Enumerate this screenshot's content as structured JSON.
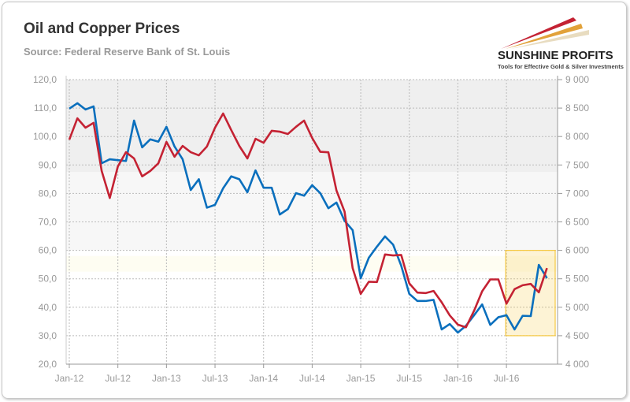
{
  "header": {
    "title": "Oil and Copper Prices",
    "subtitle": "Source: Federal Reserve Bank of St. Louis"
  },
  "logo": {
    "name": "SUNSHINE PROFITS",
    "tagline": "Tools for Effective Gold & Silver Investments"
  },
  "chart_data": {
    "type": "line",
    "title": "Oil and Copper Prices",
    "x_tick_labels": [
      "Jan-12",
      "Jul-12",
      "Jan-13",
      "Jul-13",
      "Jan-14",
      "Jul-14",
      "Jan-15",
      "Jul-15",
      "Jan-16",
      "Jul-16"
    ],
    "x_range": [
      "Jan-12",
      "Dec-16"
    ],
    "frequency": "monthly",
    "y_left": {
      "range": [
        20,
        120
      ],
      "ticks": [
        "20,0",
        "30,0",
        "40,0",
        "50,0",
        "60,0",
        "70,0",
        "80,0",
        "90,0",
        "100,0",
        "110,0",
        "120,0"
      ]
    },
    "y_right": {
      "range": [
        4000,
        9000
      ],
      "ticks": [
        "4 000",
        "4 500",
        "5 000",
        "5 500",
        "6 000",
        "6 500",
        "7 000",
        "7 500",
        "8 000",
        "8 500",
        "9 000"
      ]
    },
    "grid": true,
    "series": [
      {
        "axis": "left",
        "color": "#0a6fbd",
        "values": [
          109.8,
          111.7,
          109.5,
          110.6,
          90.6,
          92.0,
          91.7,
          91.4,
          105.6,
          96.2,
          99.0,
          98.2,
          103.4,
          96.5,
          92.0,
          81.2,
          85.0,
          75.0,
          76.0,
          81.8,
          86.0,
          85.0,
          80.4,
          88.1,
          82.0,
          82.0,
          72.6,
          74.5,
          80.1,
          79.2,
          82.9,
          80.1,
          74.8,
          76.8,
          70.4,
          67.1,
          50.2,
          57.4,
          61.3,
          64.9,
          62.0,
          54.6,
          44.7,
          42.2,
          42.2,
          42.6,
          32.2,
          34.1,
          31.1,
          33.5,
          37.2,
          41.0,
          33.8,
          36.5,
          37.2,
          32.2,
          37.0,
          36.9,
          54.9,
          50.2
        ]
      },
      {
        "axis": "right",
        "color": "#c42233",
        "values": [
          7945,
          8320,
          8155,
          8240,
          7395,
          6920,
          7475,
          7725,
          7615,
          7300,
          7395,
          7530,
          7905,
          7645,
          7835,
          7725,
          7670,
          7825,
          8155,
          8405,
          8115,
          7835,
          7615,
          7960,
          7890,
          8100,
          8085,
          8045,
          8170,
          8280,
          7975,
          7732,
          7723,
          7052,
          6682,
          5688,
          5235,
          5448,
          5443,
          5928,
          5910,
          5919,
          5420,
          5258,
          5249,
          5286,
          5087,
          4856,
          4694,
          4648,
          4939,
          5281,
          5489,
          5489,
          5064,
          5318,
          5387,
          5410,
          5263,
          5688
        ]
      }
    ],
    "highlight": {
      "from": "Jul-16",
      "to": "Dec-16",
      "y_left": [
        30,
        60
      ],
      "color": "#f5c842"
    },
    "background_bands_left_axis": [
      {
        "from": 87.5,
        "to": 120,
        "color": "#efefef"
      },
      {
        "from": 60,
        "to": 87.5,
        "color": "#f7f7f7"
      },
      {
        "from": 52.5,
        "to": 58,
        "color": "#fefdf2"
      }
    ]
  }
}
